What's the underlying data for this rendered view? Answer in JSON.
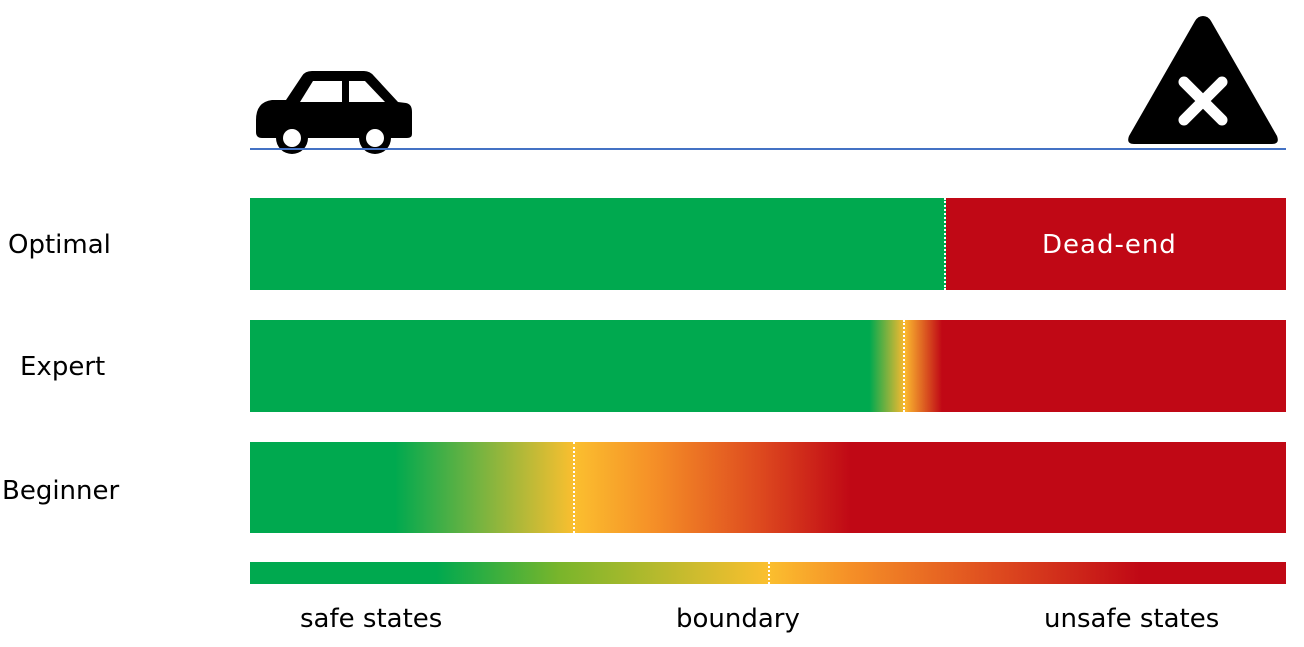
{
  "icons": {
    "start": "car-icon",
    "end": "warning-triangle-x-icon"
  },
  "rows": [
    {
      "label": "Optimal",
      "boundary_fraction": 0.672,
      "annotation": "Dead-end"
    },
    {
      "label": "Expert",
      "boundary_fraction": 0.632
    },
    {
      "label": "Beginner",
      "boundary_fraction": 0.313
    }
  ],
  "legend": {
    "safe": "safe states",
    "boundary": "boundary",
    "unsafe": "unsafe states",
    "boundary_fraction": 0.5
  },
  "colors": {
    "safe": "#00a94f",
    "boundary": "#fbbf2f",
    "unsafe": "#c00815",
    "road": "#4472c4"
  }
}
